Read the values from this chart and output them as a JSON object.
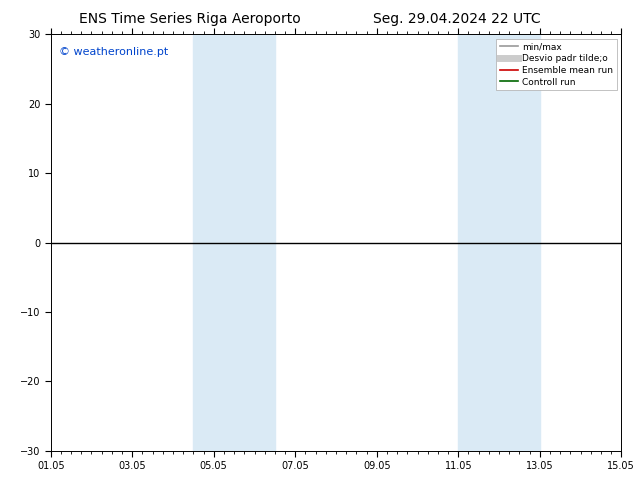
{
  "title_left": "ENS Time Series Riga Aeroporto",
  "title_right": "Seg. 29.04.2024 22 UTC",
  "watermark": "© weatheronline.pt",
  "ylim": [
    -30,
    30
  ],
  "yticks": [
    -30,
    -20,
    -10,
    0,
    10,
    20,
    30
  ],
  "x_start": 0,
  "x_end": 14,
  "xtick_labels": [
    "01.05",
    "03.05",
    "05.05",
    "07.05",
    "09.05",
    "11.05",
    "13.05",
    "15.05"
  ],
  "xtick_positions": [
    0,
    2,
    4,
    6,
    8,
    10,
    12,
    14
  ],
  "shaded_bands": [
    {
      "xmin": 3.5,
      "xmax": 4.5
    },
    {
      "xmin": 4.5,
      "xmax": 5.5
    },
    {
      "xmin": 10.0,
      "xmax": 11.0
    },
    {
      "xmin": 11.0,
      "xmax": 12.0
    }
  ],
  "zero_line_color": "#000000",
  "shade_color": "#daeaf5",
  "legend_items": [
    {
      "label": "min/max",
      "color": "#999999",
      "lw": 1.2
    },
    {
      "label": "Desvio padr tilde;o",
      "color": "#cccccc",
      "lw": 5
    },
    {
      "label": "Ensemble mean run",
      "color": "#cc0000",
      "lw": 1.2
    },
    {
      "label": "Controll run",
      "color": "#006600",
      "lw": 1.2
    }
  ],
  "background_color": "#ffffff",
  "title_fontsize": 10,
  "watermark_color": "#0044cc",
  "watermark_fontsize": 8
}
